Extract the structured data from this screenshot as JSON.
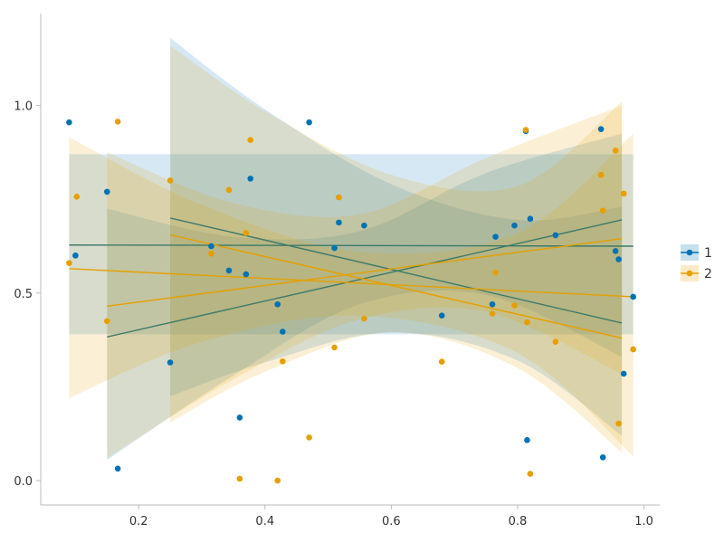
{
  "chart_data": {
    "type": "scatter",
    "title": "",
    "xlabel": "",
    "ylabel": "",
    "xlim": [
      0.045,
      1.025
    ],
    "ylim": [
      -0.065,
      1.245
    ],
    "x_ticks": [
      0.2,
      0.4,
      0.6,
      0.8,
      1.0
    ],
    "x_tick_labels": [
      "0.2",
      "0.4",
      "0.6",
      "0.8",
      "1.0"
    ],
    "y_ticks": [
      0.0,
      0.5,
      1.0
    ],
    "y_tick_labels": [
      "0.0",
      "0.5",
      "1.0"
    ],
    "grid": false,
    "legend_position": "right",
    "series": [
      {
        "name": "1",
        "color": "#0072B2",
        "points": [
          [
            0.09,
            0.955
          ],
          [
            0.1,
            0.6
          ],
          [
            0.15,
            0.77
          ],
          [
            0.167,
            0.032
          ],
          [
            0.25,
            0.315
          ],
          [
            0.315,
            0.625
          ],
          [
            0.343,
            0.56
          ],
          [
            0.36,
            0.168
          ],
          [
            0.37,
            0.55
          ],
          [
            0.377,
            0.805
          ],
          [
            0.42,
            0.47
          ],
          [
            0.428,
            0.397
          ],
          [
            0.47,
            0.955
          ],
          [
            0.51,
            0.62
          ],
          [
            0.517,
            0.688
          ],
          [
            0.557,
            0.68
          ],
          [
            0.68,
            0.44
          ],
          [
            0.76,
            0.47
          ],
          [
            0.765,
            0.65
          ],
          [
            0.795,
            0.68
          ],
          [
            0.813,
            0.932
          ],
          [
            0.815,
            0.108
          ],
          [
            0.82,
            0.698
          ],
          [
            0.86,
            0.654
          ],
          [
            0.932,
            0.937
          ],
          [
            0.935,
            0.062
          ],
          [
            0.955,
            0.612
          ],
          [
            0.96,
            0.59
          ],
          [
            0.968,
            0.285
          ],
          [
            0.983,
            0.49
          ]
        ],
        "fits": [
          {
            "x_range": [
              0.09,
              0.983
            ],
            "y_range": [
              0.628,
              0.625
            ],
            "band_lower": [
              [
                0.09,
                0.39
              ],
              [
                0.983,
                0.39
              ]
            ],
            "band_upper": [
              [
                0.09,
                0.87
              ],
              [
                0.983,
                0.87
              ]
            ],
            "band_hint": "flat"
          },
          {
            "x_range": [
              0.15,
              0.965
            ],
            "y_range": [
              0.383,
              0.695
            ],
            "band": [
              [
                0.15,
                0.055,
                0.725
              ],
              [
                0.35,
                0.28,
                0.65
              ],
              [
                0.55,
                0.47,
                0.665
              ],
              [
                0.75,
                0.495,
                0.82
              ],
              [
                0.965,
                0.33,
                0.925
              ]
            ]
          },
          {
            "x_range": [
              0.25,
              0.965
            ],
            "y_range": [
              0.7,
              0.42
            ],
            "band": [
              [
                0.25,
                0.225,
                1.18
              ],
              [
                0.4,
                0.315,
                0.99
              ],
              [
                0.6,
                0.395,
                0.79
              ],
              [
                0.8,
                0.32,
                0.695
              ],
              [
                0.965,
                0.12,
                0.73
              ]
            ]
          }
        ]
      },
      {
        "name": "2",
        "color": "#E69F00",
        "points": [
          [
            0.09,
            0.58
          ],
          [
            0.102,
            0.757
          ],
          [
            0.15,
            0.425
          ],
          [
            0.167,
            0.957
          ],
          [
            0.25,
            0.8
          ],
          [
            0.315,
            0.605
          ],
          [
            0.343,
            0.775
          ],
          [
            0.36,
            0.005
          ],
          [
            0.37,
            0.66
          ],
          [
            0.377,
            0.908
          ],
          [
            0.42,
            0.0
          ],
          [
            0.428,
            0.318
          ],
          [
            0.47,
            0.115
          ],
          [
            0.51,
            0.355
          ],
          [
            0.517,
            0.755
          ],
          [
            0.557,
            0.432
          ],
          [
            0.68,
            0.317
          ],
          [
            0.76,
            0.445
          ],
          [
            0.765,
            0.555
          ],
          [
            0.795,
            0.467
          ],
          [
            0.813,
            0.935
          ],
          [
            0.815,
            0.422
          ],
          [
            0.82,
            0.018
          ],
          [
            0.86,
            0.37
          ],
          [
            0.932,
            0.815
          ],
          [
            0.935,
            0.72
          ],
          [
            0.955,
            0.88
          ],
          [
            0.96,
            0.152
          ],
          [
            0.968,
            0.765
          ],
          [
            0.983,
            0.35
          ]
        ],
        "fits": [
          {
            "x_range": [
              0.09,
              0.983
            ],
            "y_range": [
              0.565,
              0.49
            ],
            "band": [
              [
                0.09,
                0.22,
                0.915
              ],
              [
                0.3,
                0.37,
                0.735
              ],
              [
                0.55,
                0.44,
                0.61
              ],
              [
                0.8,
                0.34,
                0.66
              ],
              [
                0.983,
                0.065,
                0.925
              ]
            ]
          },
          {
            "x_range": [
              0.15,
              0.965
            ],
            "y_range": [
              0.465,
              0.645
            ],
            "band": [
              [
                0.15,
                0.06,
                0.875
              ],
              [
                0.35,
                0.27,
                0.74
              ],
              [
                0.55,
                0.43,
                0.71
              ],
              [
                0.75,
                0.45,
                0.86
              ],
              [
                0.965,
                0.285,
                1.0
              ]
            ]
          },
          {
            "x_range": [
              0.25,
              0.965
            ],
            "y_range": [
              0.655,
              0.38
            ],
            "band": [
              [
                0.25,
                0.155,
                1.16
              ],
              [
                0.4,
                0.29,
                0.985
              ],
              [
                0.6,
                0.395,
                0.815
              ],
              [
                0.8,
                0.3,
                0.785
              ],
              [
                0.965,
                0.075,
                1.01
              ]
            ]
          }
        ]
      }
    ]
  }
}
